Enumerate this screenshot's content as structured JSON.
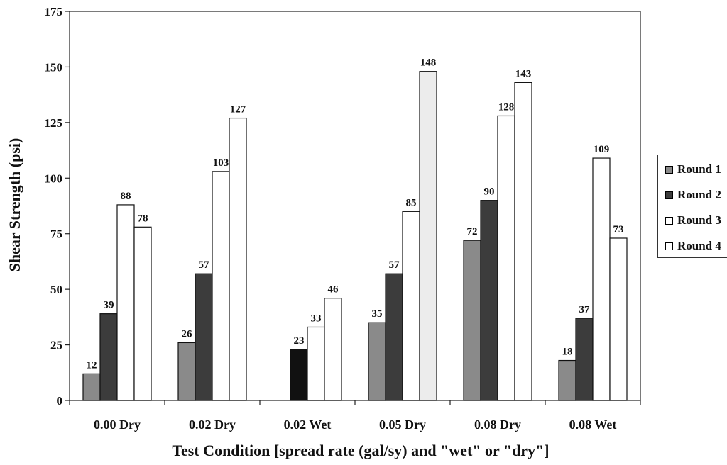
{
  "chart_data": {
    "type": "bar",
    "categories": [
      "0.00 Dry",
      "0.02 Dry",
      "0.02 Wet",
      "0.05 Dry",
      "0.08 Dry",
      "0.08 Wet"
    ],
    "series": [
      {
        "name": "Round 1",
        "values": [
          12,
          26,
          null,
          35,
          72,
          18
        ],
        "color": "#8a8a8a"
      },
      {
        "name": "Round 2",
        "values": [
          39,
          57,
          23,
          57,
          90,
          37
        ],
        "color": "#3c3c3c"
      },
      {
        "name": "Round 3",
        "values": [
          88,
          103,
          33,
          85,
          128,
          109
        ],
        "color": "#ffffff"
      },
      {
        "name": "Round 4",
        "values": [
          78,
          127,
          46,
          148,
          143,
          73
        ],
        "color": "#ffffff"
      }
    ],
    "special_colors": {
      "0.02 Wet / Round 2": "#111111",
      "0.05 Dry / Round 4": "#ececec"
    },
    "xlabel": "Test Condition [spread rate (gal/sy) and \"wet\" or \"dry\"]",
    "ylabel": "Shear Strength (psi)",
    "ylim": [
      0,
      175
    ],
    "yticks": [
      0,
      25,
      50,
      75,
      100,
      125,
      150,
      175
    ],
    "legend_position": "right"
  }
}
